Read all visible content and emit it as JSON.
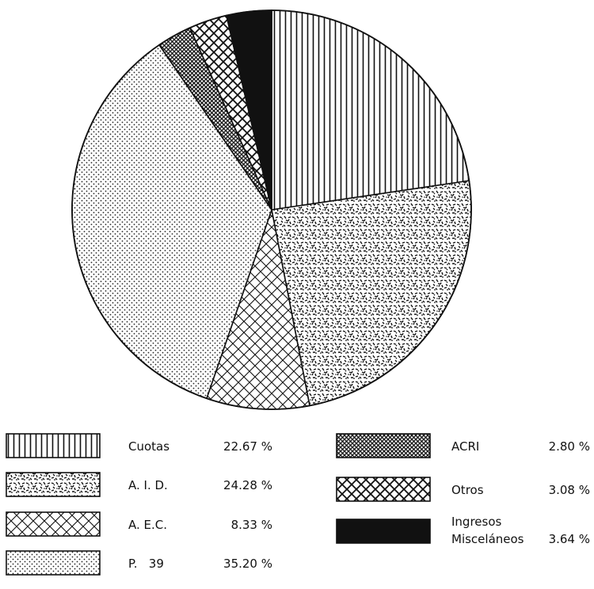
{
  "chart_data": {
    "type": "pie",
    "title": "",
    "start_angle_deg": 0,
    "direction": "clockwise",
    "slices": [
      {
        "label": "Cuotas",
        "value": 22.67,
        "display": "22.67 %",
        "pattern": "vertical-lines"
      },
      {
        "label": "A. I. D.",
        "value": 24.28,
        "display": "24.28 %",
        "pattern": "speckle"
      },
      {
        "label": "A. E.C.",
        "value": 8.33,
        "display": "8.33 %",
        "pattern": "crosshatch"
      },
      {
        "label": "P.   39",
        "value": 35.2,
        "display": "35.20 %",
        "pattern": "dots"
      },
      {
        "label": "ACRI",
        "value": 2.8,
        "display": "2.80 %",
        "pattern": "dense-crosshatch"
      },
      {
        "label": "Otros",
        "value": 3.08,
        "display": "3.08 %",
        "pattern": "crosshatch-bold"
      },
      {
        "label": "Ingresos Misceláneos",
        "label_lines": [
          "Ingresos",
          "Misceláneos"
        ],
        "value": 3.64,
        "display": "3.64 %",
        "pattern": "solid"
      }
    ],
    "legend_placement": "bottom"
  }
}
